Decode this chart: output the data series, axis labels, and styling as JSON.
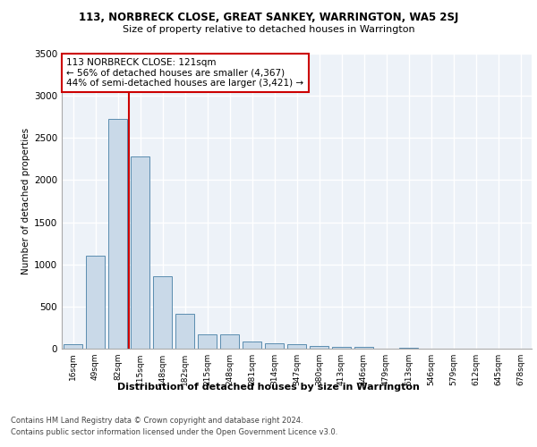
{
  "title1": "113, NORBRECK CLOSE, GREAT SANKEY, WARRINGTON, WA5 2SJ",
  "title2": "Size of property relative to detached houses in Warrington",
  "xlabel": "Distribution of detached houses by size in Warrington",
  "ylabel": "Number of detached properties",
  "categories": [
    "16sqm",
    "49sqm",
    "82sqm",
    "115sqm",
    "148sqm",
    "182sqm",
    "215sqm",
    "248sqm",
    "281sqm",
    "314sqm",
    "347sqm",
    "380sqm",
    "413sqm",
    "446sqm",
    "479sqm",
    "513sqm",
    "546sqm",
    "579sqm",
    "612sqm",
    "645sqm",
    "678sqm"
  ],
  "values": [
    55,
    1100,
    2730,
    2280,
    860,
    415,
    170,
    165,
    90,
    60,
    50,
    35,
    25,
    20,
    5,
    15,
    5,
    5,
    0,
    0,
    0
  ],
  "bar_color": "#c9d9e8",
  "bar_edge_color": "#5b8db0",
  "annotation_text": "113 NORBRECK CLOSE: 121sqm\n← 56% of detached houses are smaller (4,367)\n44% of semi-detached houses are larger (3,421) →",
  "annotation_box_color": "#ffffff",
  "annotation_box_edge": "#cc0000",
  "red_line_color": "#cc0000",
  "footer1": "Contains HM Land Registry data © Crown copyright and database right 2024.",
  "footer2": "Contains public sector information licensed under the Open Government Licence v3.0.",
  "background_color": "#edf2f8",
  "grid_color": "#ffffff",
  "ylim": [
    0,
    3500
  ]
}
